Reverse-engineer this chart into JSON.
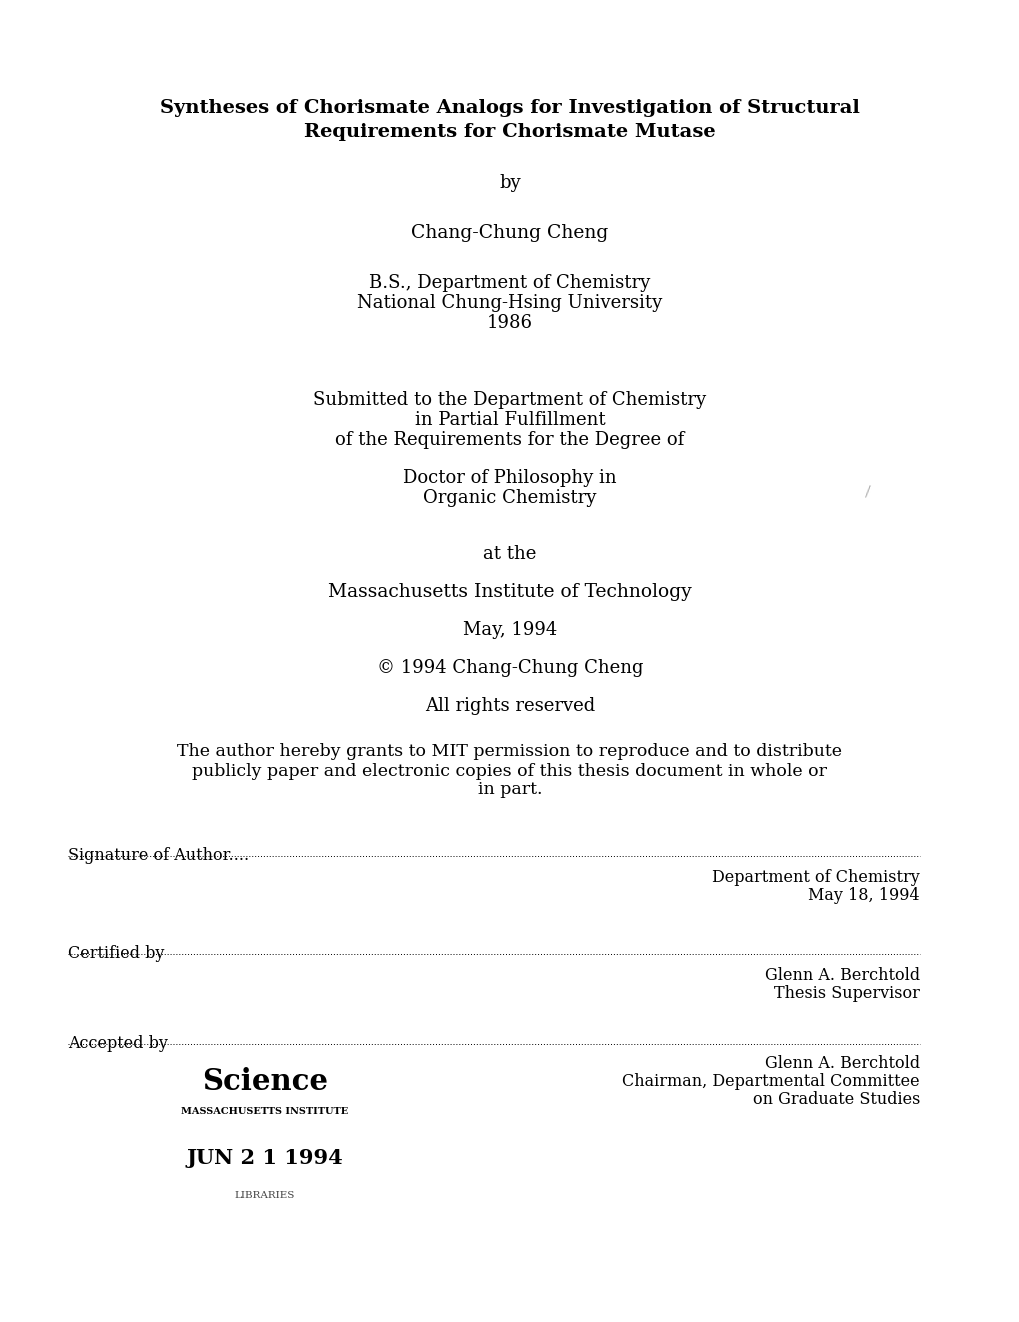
{
  "bg_color": "#ffffff",
  "title_line1": "Syntheses of Chorismate Analogs for Investigation of Structural",
  "title_line2": "Requirements for Chorismate Mutase",
  "by": "by",
  "author": "Chang-Chung Cheng",
  "degree_block": [
    "B.S., Department of Chemistry",
    "National Chung-Hsing University",
    "1986"
  ],
  "submitted_block": [
    "Submitted to the Department of Chemistry",
    "in Partial Fulfillment",
    "of the Requirements for the Degree of"
  ],
  "degree": [
    "Doctor of Philosophy in",
    "Organic Chemistry"
  ],
  "at_the": "at the",
  "institution": "Massachusetts Institute of Technology",
  "date": "May, 1994",
  "copyright": "© 1994 Chang-Chung Cheng",
  "rights": "All rights reserved",
  "permission": [
    "The author hereby grants to MIT permission to reproduce and to distribute",
    "publicly paper and electronic copies of this thesis document in whole or",
    "in part."
  ],
  "sig_label": "Signature of Author....",
  "sig_right1": "Department of Chemistry",
  "sig_right2": "May 18, 1994",
  "cert_label": "Certified by",
  "cert_right1": "Glenn A. Berchtold",
  "cert_right2": "Thesis Supervisor",
  "acc_label": "Accepted by",
  "acc_right1": "Glenn A. Berchtold",
  "acc_right2": "Chairman, Departmental Committee",
  "acc_right3": "on Graduate Studies",
  "stamp_science": "Science",
  "stamp_mit": "MASSACHUSETTS INSTITUTE",
  "stamp_date": "JUN 2 1 1994",
  "stamp_lib": "LIBRARIES",
  "title_fontsize": 14,
  "body_fontsize": 13,
  "small_fontsize": 11.5
}
